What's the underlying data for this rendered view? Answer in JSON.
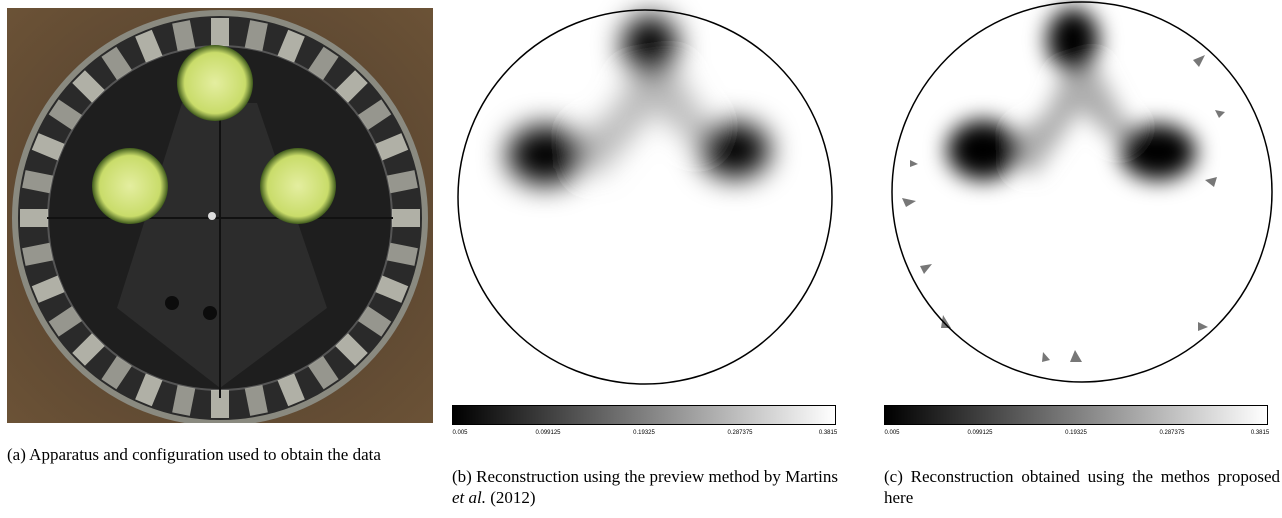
{
  "panels": [
    {
      "caption": [
        "(a) Apparatus and configuration used to obtain the data"
      ]
    },
    {
      "caption": [
        "(b) Reconstruction using the preview method by Martins ",
        "et al.",
        " (2012)"
      ],
      "colorbar_ticks": [
        "0.005",
        "0.099125",
        "0.19325",
        "0.287375",
        "0.3815"
      ]
    },
    {
      "caption": [
        "(c) Reconstruction obtained using the methos proposed here"
      ],
      "colorbar_ticks": [
        "0.005",
        "0.099125",
        "0.19325",
        "0.287375",
        "0.3815"
      ]
    }
  ]
}
